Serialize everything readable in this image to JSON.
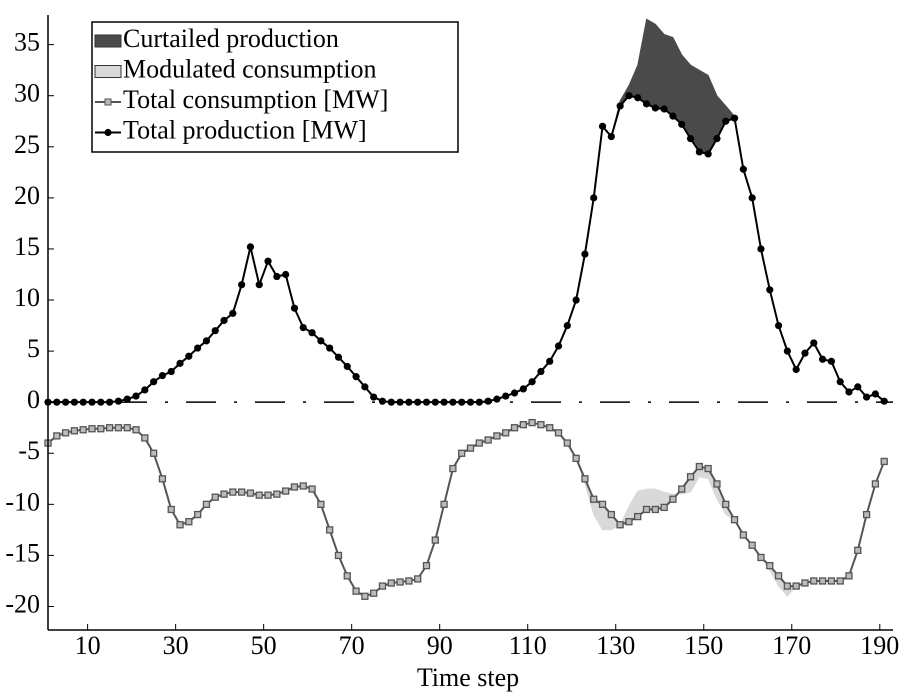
{
  "chart_data": {
    "type": "line",
    "xlabel": "Time step",
    "x": [
      1,
      3,
      5,
      7,
      9,
      11,
      13,
      15,
      17,
      19,
      21,
      23,
      25,
      27,
      29,
      31,
      33,
      35,
      37,
      39,
      41,
      43,
      45,
      47,
      49,
      51,
      53,
      55,
      57,
      59,
      61,
      63,
      65,
      67,
      69,
      71,
      73,
      75,
      77,
      79,
      81,
      83,
      85,
      87,
      89,
      91,
      93,
      95,
      97,
      99,
      101,
      103,
      105,
      107,
      109,
      111,
      113,
      115,
      117,
      119,
      121,
      123,
      125,
      127,
      129,
      131,
      133,
      135,
      137,
      139,
      141,
      143,
      145,
      147,
      149,
      151,
      153,
      155,
      157,
      159,
      161,
      163,
      165,
      167,
      169,
      171,
      173,
      175,
      177,
      179,
      181,
      183,
      185,
      187,
      189,
      191
    ],
    "series": [
      {
        "name": "Curtailed production",
        "color": "#4a4a4a",
        "role": "band",
        "base": 3,
        "values": [
          0,
          0,
          0,
          0,
          0,
          0,
          0,
          0,
          0,
          0,
          0,
          0,
          0,
          0,
          0,
          0,
          0,
          0,
          0,
          0,
          0,
          0,
          0,
          0,
          0,
          0,
          0,
          0,
          0,
          0,
          0,
          0,
          0,
          0,
          0,
          0,
          0,
          0,
          0,
          0,
          0,
          0,
          0,
          0,
          0,
          0,
          0,
          0,
          0,
          0,
          0,
          0,
          0,
          0,
          0,
          0,
          0,
          0,
          0,
          0,
          0,
          0,
          0,
          0,
          0,
          0.5,
          1,
          3.2,
          8.3,
          8.2,
          7.3,
          7.7,
          6.8,
          7.2,
          8,
          7.7,
          4.2,
          1.5,
          0.2,
          0,
          0,
          0,
          0,
          0,
          0,
          0,
          0,
          0,
          0,
          0,
          0,
          0,
          0,
          0,
          0,
          0
        ]
      },
      {
        "name": "Modulated consumption",
        "color": "#d9d9d9",
        "role": "band",
        "base": 2,
        "values": [
          0,
          0,
          0,
          0,
          0,
          0,
          0,
          0,
          0,
          0,
          0,
          0,
          0,
          0,
          0,
          0,
          0,
          0,
          0,
          0,
          0,
          0,
          0,
          0,
          0,
          0,
          0,
          0,
          0,
          0,
          0,
          0,
          0,
          0,
          0,
          0,
          0,
          0,
          0,
          0,
          0,
          0,
          0,
          0,
          0,
          0,
          0,
          0,
          0,
          0,
          0,
          0,
          0,
          0,
          0,
          0,
          0,
          0,
          0,
          0,
          0,
          -0.5,
          -1.5,
          -2.5,
          -1.5,
          0,
          1.5,
          2.5,
          2,
          2,
          1.5,
          0.5,
          -0.5,
          -1.5,
          -1,
          -1,
          -1.5,
          -1,
          0,
          0,
          0,
          0,
          -0.5,
          -1,
          -1,
          0,
          0,
          0,
          0,
          0,
          0,
          0,
          0,
          0,
          0,
          0
        ]
      },
      {
        "name": "Total consumption [MW]",
        "color": "#555555",
        "role": "line",
        "marker": "square",
        "values": [
          -4,
          -3.3,
          -3,
          -2.8,
          -2.7,
          -2.6,
          -2.6,
          -2.5,
          -2.5,
          -2.5,
          -2.7,
          -3.5,
          -5,
          -7.5,
          -10.5,
          -12,
          -11.7,
          -11,
          -10,
          -9.3,
          -9,
          -8.8,
          -8.8,
          -8.9,
          -9.1,
          -9.1,
          -9,
          -8.7,
          -8.3,
          -8.2,
          -8.5,
          -10,
          -12.5,
          -15,
          -17,
          -18.5,
          -19,
          -18.7,
          -18,
          -17.7,
          -17.6,
          -17.5,
          -17.3,
          -16,
          -13.5,
          -10,
          -6.5,
          -5,
          -4.5,
          -4,
          -3.7,
          -3.3,
          -3,
          -2.5,
          -2.2,
          -2,
          -2.2,
          -2.5,
          -3,
          -4,
          -5.5,
          -7.5,
          -9.5,
          -10,
          -11,
          -12,
          -11.7,
          -11.2,
          -10.5,
          -10.5,
          -10.3,
          -9.5,
          -8.5,
          -7.3,
          -6.3,
          -6.5,
          -8,
          -10,
          -11.5,
          -13,
          -14,
          -15.2,
          -16,
          -17,
          -18,
          -18,
          -17.7,
          -17.5,
          -17.5,
          -17.5,
          -17.5,
          -17,
          -14.5,
          -11,
          -8,
          -5.8
        ]
      },
      {
        "name": "Total production [MW]",
        "color": "#000000",
        "role": "line",
        "marker": "circle",
        "values": [
          0,
          0,
          0,
          0,
          0,
          0,
          0,
          0,
          0.1,
          0.3,
          0.6,
          1.2,
          2,
          2.6,
          3,
          3.8,
          4.5,
          5.3,
          6,
          7,
          8,
          8.7,
          11.5,
          15.2,
          11.5,
          13.8,
          12.3,
          12.5,
          9.2,
          7.3,
          6.8,
          6,
          5.3,
          4.4,
          3.5,
          2.5,
          1.5,
          0.5,
          0.1,
          0,
          0,
          0,
          0,
          0,
          0,
          0,
          0,
          0,
          0,
          0,
          0.1,
          0.3,
          0.6,
          0.9,
          1.3,
          2,
          3,
          4,
          5.5,
          7.5,
          10,
          14.5,
          20,
          27,
          26,
          29,
          30,
          29.8,
          29.2,
          28.8,
          28.7,
          28,
          27.2,
          25.8,
          24.5,
          24.3,
          25.8,
          27.5,
          27.8,
          22.8,
          20,
          15,
          11,
          7.5,
          5,
          3.2,
          4.8,
          5.8,
          4.2,
          4,
          2,
          1,
          1.5,
          0.5,
          0.8,
          0.1
        ]
      }
    ],
    "reference_line": 0,
    "xlim": [
      1,
      193
    ],
    "ylim": [
      -22.3,
      37.9
    ],
    "xticks": [
      10,
      30,
      50,
      70,
      90,
      110,
      130,
      150,
      170,
      190
    ],
    "yticks": [
      -20,
      -15,
      -10,
      -5,
      0,
      5,
      10,
      15,
      20,
      25,
      30,
      35
    ],
    "legend": "upper-left"
  }
}
